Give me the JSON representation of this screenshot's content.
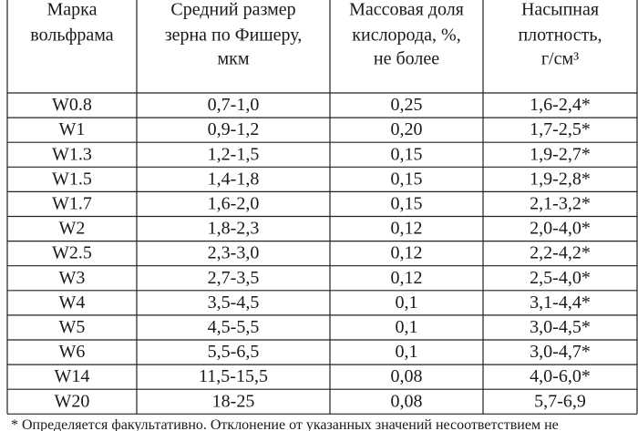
{
  "table": {
    "header": [
      [
        "Марка",
        "вольфрама"
      ],
      [
        "Средний размер",
        "зерна по Фишеру,",
        "мкм"
      ],
      [
        "Массовая доля",
        "кислорода, %,",
        "не более"
      ],
      [
        "Насыпная",
        "плотность,",
        "г/см³"
      ]
    ],
    "rows": [
      [
        "W0.8",
        "0,7-1,0",
        "0,25",
        "1,6-2,4*"
      ],
      [
        "W1",
        "0,9-1,2",
        "0,20",
        "1,7-2,5*"
      ],
      [
        "W1.3",
        "1,2-1,5",
        "0,15",
        "1,9-2,7*"
      ],
      [
        "W1.5",
        "1,4-1,8",
        "0,15",
        "1,9-2,8*"
      ],
      [
        "W1.7",
        "1,6-2,0",
        "0,15",
        "2,1-3,2*"
      ],
      [
        "W2",
        "1,8-2,3",
        "0,12",
        "2,0-4,0*"
      ],
      [
        "W2.5",
        "2,3-3,0",
        "0,12",
        "2,2-4,2*"
      ],
      [
        "W3",
        "2,7-3,5",
        "0,12",
        "2,5-4,0*"
      ],
      [
        "W4",
        "3,5-4,5",
        "0,1",
        "3,1-4,4*"
      ],
      [
        "W5",
        "4,5-5,5",
        "0,1",
        "3,0-4,5*"
      ],
      [
        "W6",
        "5,5-6,5",
        "0,1",
        "3,0-4,7*"
      ],
      [
        "W14",
        "11,5-15,5",
        "0,08",
        "4,0-6,0*"
      ],
      [
        "W20",
        "18-25",
        "0,08",
        "5,7-6,9"
      ]
    ],
    "footnote": "* Определяется факультативно. Отклонение от указанных значений несоответствием не"
  }
}
